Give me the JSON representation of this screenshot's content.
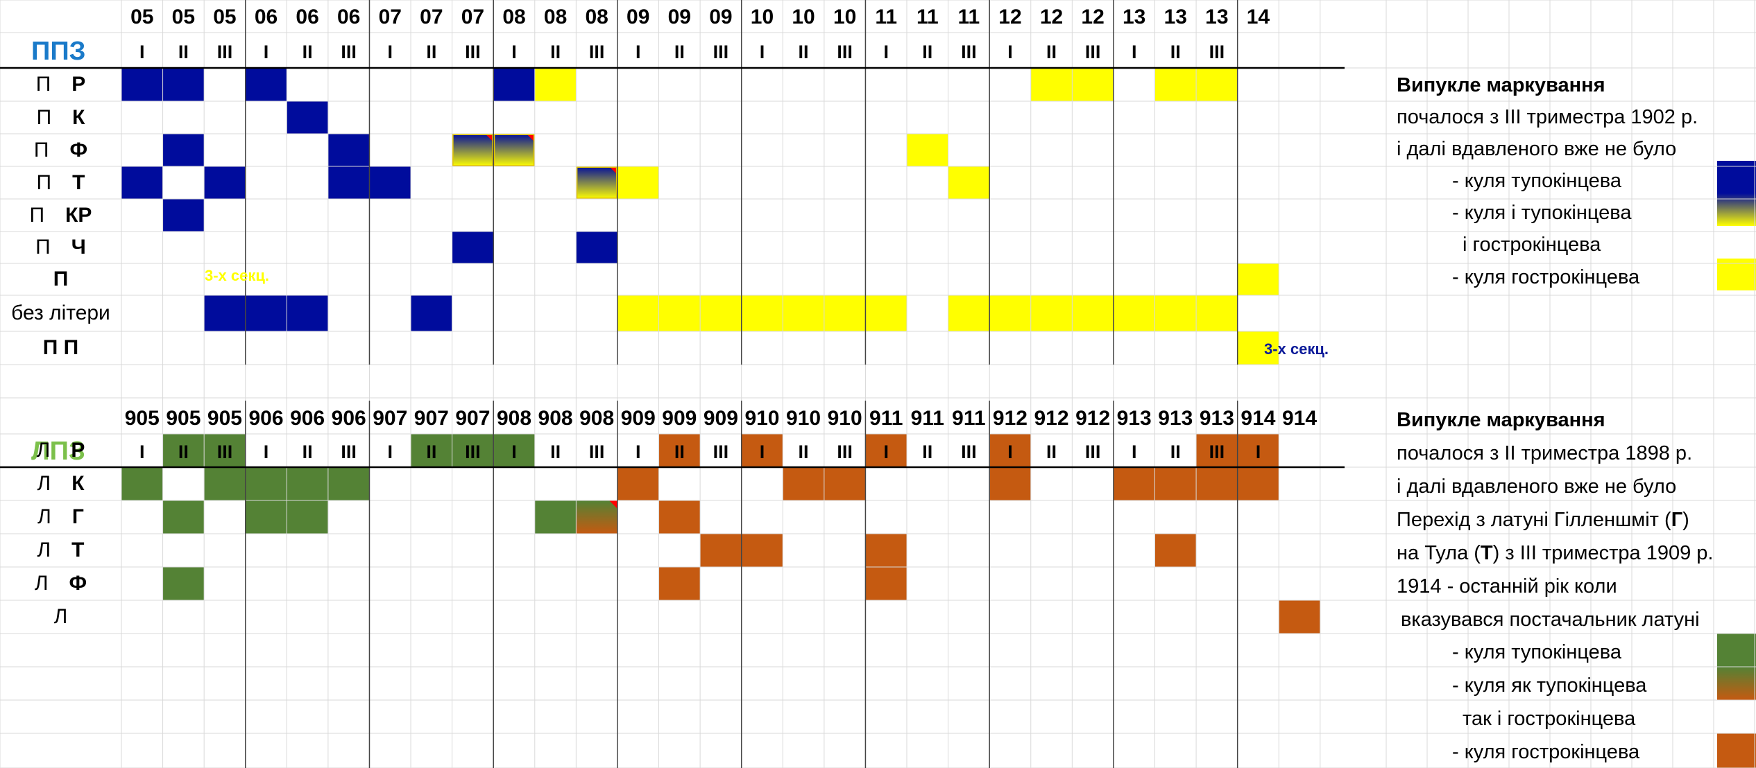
{
  "colors": {
    "blue": "#000c9c",
    "yellow": "#ffff00",
    "green": "#548235",
    "orange": "#c55a11",
    "ppz_title": "#1a7ac9",
    "lpz_title": "#7cc04b"
  },
  "ppz": {
    "title": "ППЗ",
    "years": [
      "05",
      "05",
      "05",
      "06",
      "06",
      "06",
      "07",
      "07",
      "07",
      "08",
      "08",
      "08",
      "09",
      "09",
      "09",
      "10",
      "10",
      "10",
      "11",
      "11",
      "11",
      "12",
      "12",
      "12",
      "13",
      "13",
      "13",
      "14"
    ],
    "trimesters": [
      "I",
      "II",
      "III",
      "I",
      "II",
      "III",
      "I",
      "II",
      "III",
      "I",
      "II",
      "III",
      "I",
      "II",
      "III",
      "I",
      "II",
      "III",
      "I",
      "II",
      "III",
      "I",
      "II",
      "III",
      "I",
      "II",
      "III"
    ],
    "rows": [
      {
        "prefix": "П",
        "letter": "Р"
      },
      {
        "prefix": "П",
        "letter": "К"
      },
      {
        "prefix": "П",
        "letter": "Ф"
      },
      {
        "prefix": "П",
        "letter": "Т"
      },
      {
        "prefix": "П",
        "letter": "КР"
      },
      {
        "prefix": "П",
        "letter": "Ч"
      },
      {
        "prefix": "",
        "letter": "П"
      },
      {
        "prefix": "без літери",
        "letter": ""
      },
      {
        "prefix": "",
        "letter": "П П"
      }
    ],
    "note_3sec_a": "3-х секц.",
    "note_3sec_b": "3-х секц.",
    "legend": {
      "line1": "Випукле маркування",
      "line2": "почалося з  ІІІ триместра 1902 р.",
      "line3": "і далі вдавленого вже не було",
      "blunt": "- куля тупокінцева",
      "both_1": "- куля і тупокінцева",
      "both_2": "і гострокінцева",
      "pointed": "- куля гострокінцева"
    }
  },
  "lpz": {
    "title": "ЛПЗ",
    "years": [
      "905",
      "905",
      "905",
      "906",
      "906",
      "906",
      "907",
      "907",
      "907",
      "908",
      "908",
      "908",
      "909",
      "909",
      "909",
      "910",
      "910",
      "910",
      "911",
      "911",
      "911",
      "912",
      "912",
      "912",
      "913",
      "913",
      "913",
      "914",
      "914"
    ],
    "trimesters": [
      "I",
      "II",
      "III",
      "I",
      "II",
      "III",
      "I",
      "II",
      "III",
      "I",
      "II",
      "III",
      "I",
      "II",
      "III",
      "I",
      "II",
      "III",
      "I",
      "II",
      "III",
      "I",
      "II",
      "III",
      "I",
      "II",
      "III",
      "I"
    ],
    "rows": [
      {
        "prefix": "Л",
        "letter": "Р"
      },
      {
        "prefix": "Л",
        "letter": "К"
      },
      {
        "prefix": "Л",
        "letter": "Г"
      },
      {
        "prefix": "Л",
        "letter": "Т"
      },
      {
        "prefix": "Л",
        "letter": "Ф"
      },
      {
        "prefix": "Л",
        "letter": ""
      }
    ],
    "legend": {
      "line1": "Випукле маркування",
      "line2": "почалося з ІІ триместра 1898 р.",
      "line3": "і далі вдавленого вже не було",
      "line4_a": "Перехід з латуні Гілленшміт (",
      "line4_b": "Г",
      "line4_c": ")",
      "line5_a": "на Тула (",
      "line5_b": "Т",
      "line5_c": ") з ІІІ триместра 1909 р.",
      "line6": "1914 - останній рік коли",
      "line7": "вказувався постачальник латуні",
      "blunt": "- куля тупокінцева",
      "both_1": "- куля як тупокінцева",
      "both_2": "так і гострокінцева",
      "pointed": "- куля гострокінцева"
    }
  },
  "fills": {
    "ppz": [
      [
        0,
        0,
        "b"
      ],
      [
        0,
        1,
        "b"
      ],
      [
        0,
        3,
        "b"
      ],
      [
        0,
        9,
        "b"
      ],
      [
        0,
        10,
        "y"
      ],
      [
        0,
        22,
        "y"
      ],
      [
        0,
        23,
        "y"
      ],
      [
        0,
        25,
        "y"
      ],
      [
        0,
        26,
        "y"
      ],
      [
        1,
        4,
        "b"
      ],
      [
        2,
        1,
        "b"
      ],
      [
        2,
        5,
        "b"
      ],
      [
        2,
        8,
        "by"
      ],
      [
        2,
        9,
        "by"
      ],
      [
        2,
        19,
        "y"
      ],
      [
        3,
        0,
        "b"
      ],
      [
        3,
        2,
        "b"
      ],
      [
        3,
        5,
        "b"
      ],
      [
        3,
        6,
        "b"
      ],
      [
        3,
        11,
        "by"
      ],
      [
        3,
        12,
        "y"
      ],
      [
        3,
        20,
        "y"
      ],
      [
        4,
        1,
        "b"
      ],
      [
        5,
        8,
        "b"
      ],
      [
        5,
        11,
        "b"
      ],
      [
        6,
        27,
        "y"
      ],
      [
        7,
        2,
        "b"
      ],
      [
        7,
        3,
        "b"
      ],
      [
        7,
        4,
        "b"
      ],
      [
        7,
        7,
        "b"
      ],
      [
        7,
        12,
        "y"
      ],
      [
        7,
        13,
        "y"
      ],
      [
        7,
        14,
        "y"
      ],
      [
        7,
        15,
        "y"
      ],
      [
        7,
        16,
        "y"
      ],
      [
        7,
        17,
        "y"
      ],
      [
        7,
        18,
        "y"
      ],
      [
        7,
        20,
        "y"
      ],
      [
        7,
        21,
        "y"
      ],
      [
        7,
        22,
        "y"
      ],
      [
        7,
        23,
        "y"
      ],
      [
        7,
        24,
        "y"
      ],
      [
        7,
        25,
        "y"
      ],
      [
        7,
        26,
        "y"
      ],
      [
        8,
        27,
        "y"
      ]
    ],
    "lpz": [
      [
        0,
        1,
        "g"
      ],
      [
        0,
        2,
        "g"
      ],
      [
        0,
        7,
        "g"
      ],
      [
        0,
        8,
        "g"
      ],
      [
        0,
        9,
        "g"
      ],
      [
        0,
        13,
        "o"
      ],
      [
        0,
        15,
        "o"
      ],
      [
        0,
        18,
        "o"
      ],
      [
        0,
        21,
        "o"
      ],
      [
        0,
        26,
        "o"
      ],
      [
        0,
        27,
        "o"
      ],
      [
        1,
        0,
        "g"
      ],
      [
        1,
        2,
        "g"
      ],
      [
        1,
        3,
        "g"
      ],
      [
        1,
        4,
        "g"
      ],
      [
        1,
        5,
        "g"
      ],
      [
        1,
        12,
        "o"
      ],
      [
        1,
        16,
        "o"
      ],
      [
        1,
        17,
        "o"
      ],
      [
        1,
        21,
        "o"
      ],
      [
        1,
        24,
        "o"
      ],
      [
        1,
        25,
        "o"
      ],
      [
        1,
        26,
        "o"
      ],
      [
        1,
        27,
        "o"
      ],
      [
        2,
        1,
        "g"
      ],
      [
        2,
        3,
        "g"
      ],
      [
        2,
        4,
        "g"
      ],
      [
        2,
        10,
        "g"
      ],
      [
        2,
        11,
        "go"
      ],
      [
        2,
        13,
        "o"
      ],
      [
        3,
        14,
        "o"
      ],
      [
        3,
        15,
        "o"
      ],
      [
        3,
        18,
        "o"
      ],
      [
        3,
        25,
        "o"
      ],
      [
        4,
        1,
        "g"
      ],
      [
        4,
        13,
        "o"
      ],
      [
        4,
        18,
        "o"
      ],
      [
        5,
        28,
        "o"
      ]
    ]
  }
}
